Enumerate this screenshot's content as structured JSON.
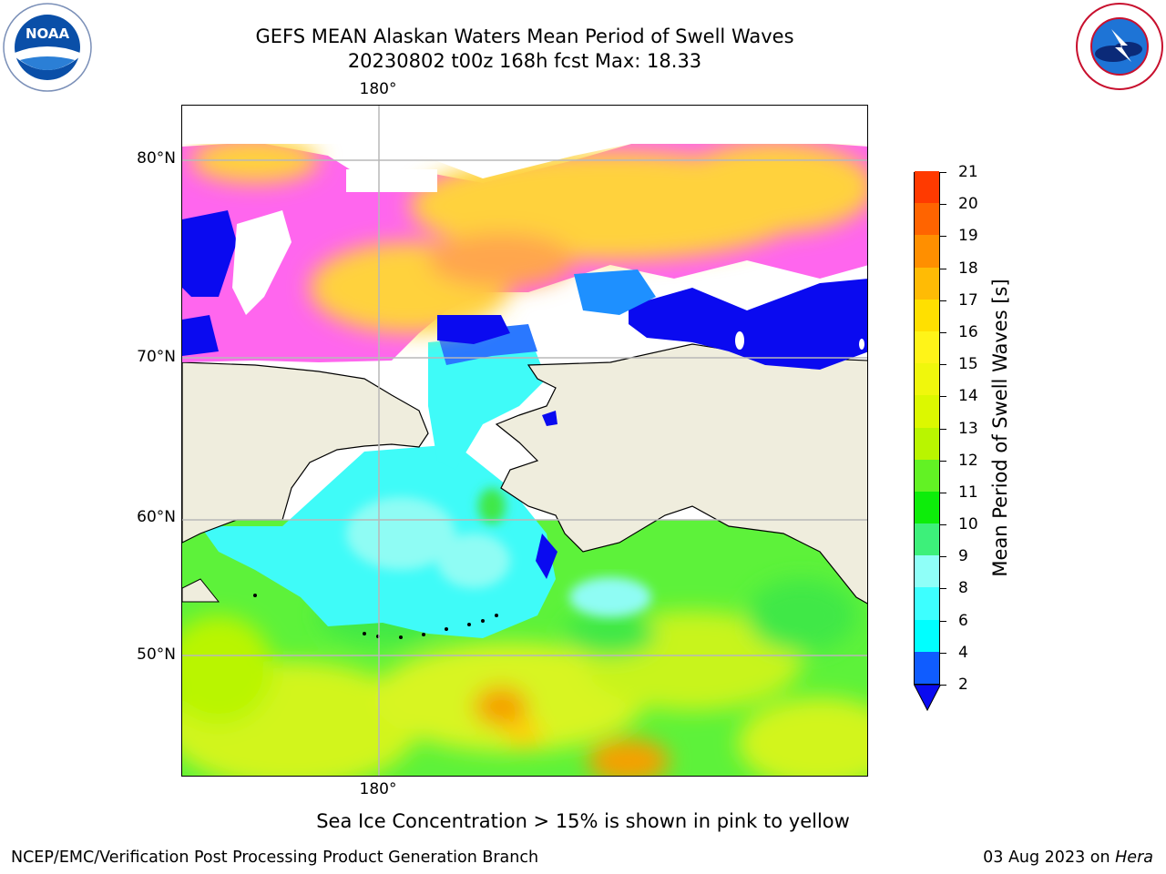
{
  "title": {
    "line1": "GEFS MEAN Alaskan Waters Mean Period of Swell Waves",
    "line2": "20230802 t00z 168h fcst   Max: 18.33"
  },
  "logos": {
    "left": {
      "name": "noaa-logo",
      "text": "NOAA"
    },
    "right": {
      "name": "nws-logo",
      "text": "NATIONAL WEATHER SERVICE"
    }
  },
  "map": {
    "lat_labels": [
      "80°N",
      "70°N",
      "60°N",
      "50°N"
    ],
    "lon_label_top": "180°",
    "lon_label_bottom": "180°",
    "colors": {
      "land": "#efeddd",
      "ocean_cyan": "#3ffbf8",
      "ocean_green": "#5df23a",
      "ocean_yellow": "#d2f51e",
      "ice_pink": "#ff66ee",
      "ice_yellow": "#ffd23c",
      "deep_blue": "#0a0af0"
    }
  },
  "colorbar": {
    "title": "Mean Period of Swell Waves [s]",
    "ticks": [
      "2",
      "4",
      "6",
      "8",
      "9",
      "10",
      "11",
      "12",
      "13",
      "14",
      "15",
      "16",
      "17",
      "18",
      "19",
      "20",
      "21"
    ],
    "colors": [
      "#0f5cff",
      "#00ffff",
      "#3dffff",
      "#8ffff8",
      "#3df07a",
      "#0ded0a",
      "#62f224",
      "#b9f500",
      "#dcf800",
      "#f0f70c",
      "#fff418",
      "#ffe000",
      "#ffbb05",
      "#ff8f00",
      "#ff6400",
      "#ff3a00",
      "#ff0000"
    ],
    "extend_color": "#0a0af0"
  },
  "caption": "Sea Ice Concentration > 15% is shown in pink to yellow",
  "footer": {
    "left": "NCEP/EMC/Verification Post Processing Product Generation Branch",
    "right_date": "03 Aug 2023 on ",
    "right_host": "Hera"
  }
}
